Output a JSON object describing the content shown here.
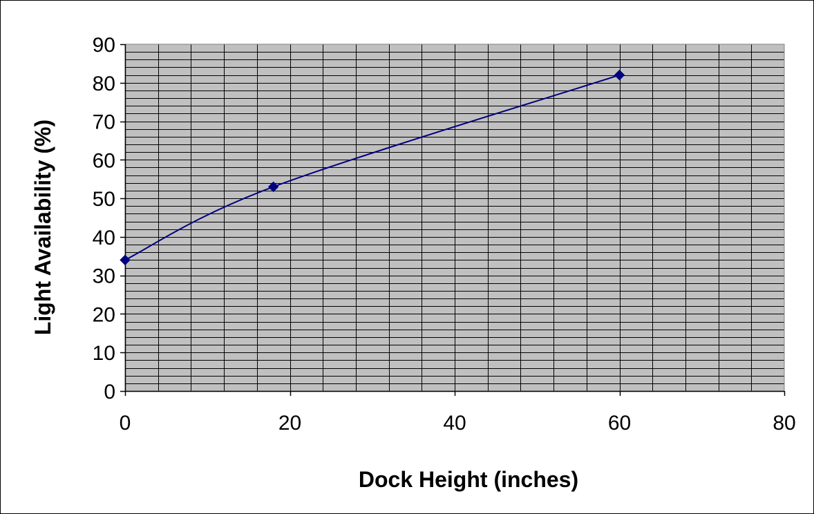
{
  "chart_data": {
    "type": "line",
    "title": "",
    "xlabel": "Dock Height (inches)",
    "ylabel": "Light Availability (%)",
    "xlim": [
      0,
      80
    ],
    "ylim": [
      0,
      90
    ],
    "x_ticks": [
      0,
      20,
      40,
      60,
      80
    ],
    "y_ticks": [
      0,
      10,
      20,
      30,
      40,
      50,
      60,
      70,
      80,
      90
    ],
    "x_tick_labels": [
      "0",
      "20",
      "40",
      "60",
      "80"
    ],
    "y_tick_labels": [
      "0",
      "10",
      "20",
      "30",
      "40",
      "50",
      "60",
      "70",
      "80",
      "90"
    ],
    "grid": true,
    "x_minor_step": 4,
    "y_minor_step": 2,
    "legend": "none",
    "line_style": "smoothed",
    "marker": "diamond",
    "series": [
      {
        "x": [
          0,
          18,
          60
        ],
        "y": [
          34,
          53,
          82
        ]
      }
    ],
    "colors": {
      "series": "#000080",
      "plot_background": "#c0c0c0",
      "grid": "#000000"
    }
  }
}
